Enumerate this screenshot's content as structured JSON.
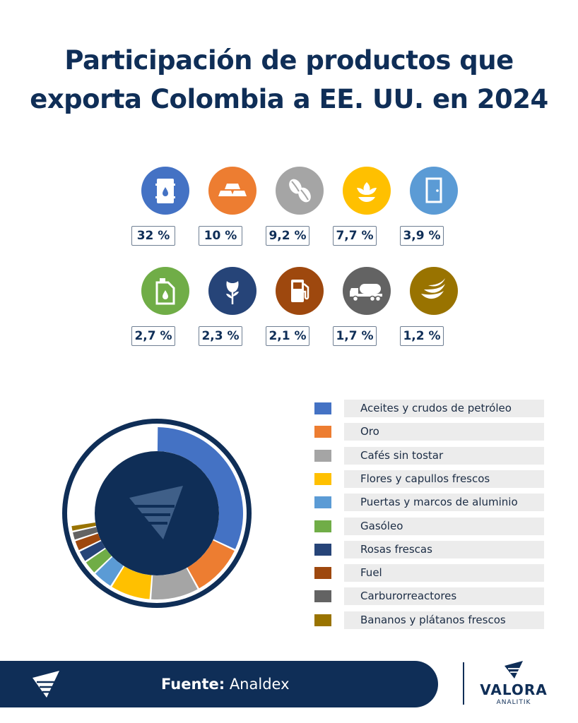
{
  "title_line1": "Participación de productos que",
  "title_line2": "exporta Colombia a EE. UU. en 2024",
  "chart_data": {
    "type": "pie",
    "title": "Participación de productos que exporta Colombia a EE. UU. en 2024",
    "unit": "%",
    "categories": [
      "Aceites y crudos de petróleo",
      "Oro",
      "Cafés sin tostar",
      "Flores y capullos frescos",
      "Puertas y marcos de aluminio",
      "Gasóleo",
      "Rosas frescas",
      "Fuel",
      "Carburorreactores",
      "Bananos y plátanos frescos"
    ],
    "values": [
      32,
      10,
      9.2,
      7.7,
      3.9,
      2.7,
      2.3,
      2.1,
      1.7,
      1.2
    ],
    "value_labels": [
      "32 %",
      "10 %",
      "9,2 %",
      "7,7 %",
      "3,9 %",
      "2,7 %",
      "2,3 %",
      "2,1 %",
      "1,7 %",
      "1,2 %"
    ],
    "colors": [
      "#4472c4",
      "#ed7d31",
      "#a5a5a5",
      "#ffc000",
      "#5b9bd5",
      "#70ad47",
      "#264478",
      "#9e480e",
      "#636363",
      "#997300"
    ],
    "icons": [
      "oil-barrel-icon",
      "gold-bars-icon",
      "coffee-beans-icon",
      "flower-icon",
      "door-icon",
      "fuel-canister-icon",
      "rose-icon",
      "fuel-pump-icon",
      "tanker-truck-icon",
      "bananas-icon"
    ],
    "legend_position": "right",
    "donut": true
  },
  "footer": {
    "source_label": "Fuente:",
    "source_value": "Analdex"
  },
  "brand": {
    "name": "VALORA",
    "sub": "ANALITIK"
  }
}
